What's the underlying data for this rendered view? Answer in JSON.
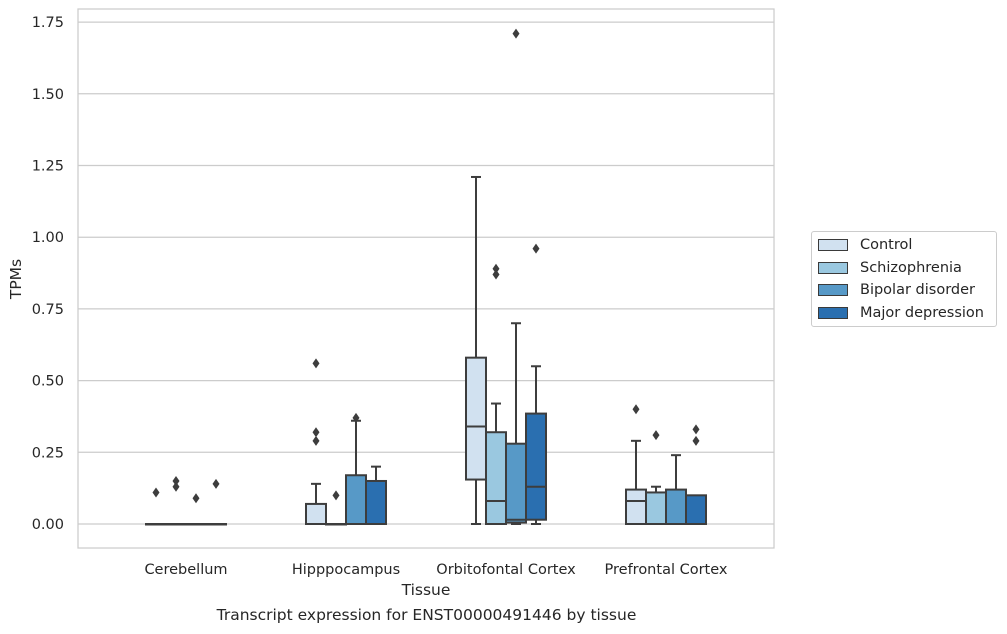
{
  "chart_data": {
    "type": "box",
    "xlabel": "Tissue",
    "ylabel": "TPMs",
    "ylim": [
      -0.08,
      1.8
    ],
    "yticks": [
      "0.00",
      "0.25",
      "0.50",
      "0.75",
      "1.00",
      "1.25",
      "1.50",
      "1.75"
    ],
    "grid": "horizontal",
    "categories": [
      "Cerebellum",
      "Hipppocampus",
      "Orbitofontal Cortex",
      "Prefrontal Cortex"
    ],
    "legend_position": "right",
    "series": [
      {
        "name": "Control",
        "color": "#d1e1f0",
        "boxes": [
          {
            "whislo": 0,
            "q1": 0,
            "med": 0,
            "q3": 0,
            "whishi": 0,
            "fliers": [
              0.11
            ]
          },
          {
            "whislo": 0,
            "q1": 0,
            "med": 0,
            "q3": 0.07,
            "whishi": 0.14,
            "fliers": [
              0.56,
              0.32,
              0.29
            ]
          },
          {
            "whislo": 0,
            "q1": 0.155,
            "med": 0.34,
            "q3": 0.58,
            "whishi": 1.21,
            "fliers": []
          },
          {
            "whislo": 0,
            "q1": 0,
            "med": 0.08,
            "q3": 0.12,
            "whishi": 0.29,
            "fliers": [
              0.4
            ]
          }
        ]
      },
      {
        "name": "Schizophrenia",
        "color": "#9ac8e0",
        "boxes": [
          {
            "whislo": 0,
            "q1": 0,
            "med": 0,
            "q3": 0,
            "whishi": 0,
            "fliers": [
              0.15,
              0.13
            ]
          },
          {
            "whislo": 0,
            "q1": 0,
            "med": 0,
            "q3": 0,
            "whishi": 0,
            "fliers": [
              0.1
            ]
          },
          {
            "whislo": 0,
            "q1": 0,
            "med": 0.08,
            "q3": 0.32,
            "whishi": 0.42,
            "fliers": [
              0.89,
              0.87
            ]
          },
          {
            "whislo": 0,
            "q1": 0,
            "med": 0,
            "q3": 0.11,
            "whishi": 0.13,
            "fliers": [
              0.31
            ]
          }
        ]
      },
      {
        "name": "Bipolar disorder",
        "color": "#5799c7",
        "boxes": [
          {
            "whislo": 0,
            "q1": 0,
            "med": 0,
            "q3": 0,
            "whishi": 0,
            "fliers": [
              0.09
            ]
          },
          {
            "whislo": 0,
            "q1": 0,
            "med": 0,
            "q3": 0.17,
            "whishi": 0.36,
            "fliers": [
              0.37
            ]
          },
          {
            "whislo": 0,
            "q1": 0.005,
            "med": 0.015,
            "q3": 0.28,
            "whishi": 0.7,
            "fliers": [
              1.71
            ]
          },
          {
            "whislo": 0,
            "q1": 0,
            "med": 0,
            "q3": 0.12,
            "whishi": 0.24,
            "fliers": []
          }
        ]
      },
      {
        "name": "Major depression",
        "color": "#2a6fb0",
        "boxes": [
          {
            "whislo": 0,
            "q1": 0,
            "med": 0,
            "q3": 0,
            "whishi": 0,
            "fliers": [
              0.14
            ]
          },
          {
            "whislo": 0,
            "q1": 0,
            "med": 0,
            "q3": 0.15,
            "whishi": 0.2,
            "fliers": []
          },
          {
            "whislo": 0,
            "q1": 0.015,
            "med": 0.13,
            "q3": 0.385,
            "whishi": 0.55,
            "fliers": [
              0.96
            ]
          },
          {
            "whislo": 0,
            "q1": 0,
            "med": 0,
            "q3": 0.1,
            "whishi": 0.1,
            "fliers": [
              0.33,
              0.29
            ]
          }
        ]
      }
    ]
  },
  "caption": "Transcript expression for ENST00000491446 by tissue"
}
